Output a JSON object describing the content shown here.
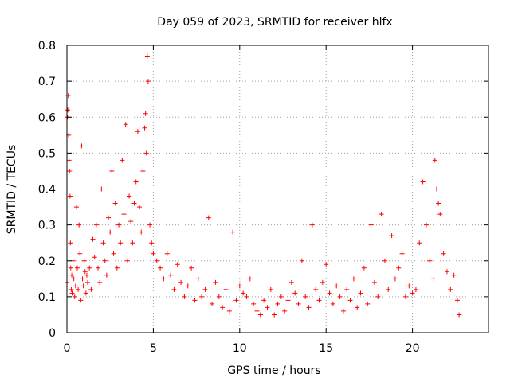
{
  "chart_data": {
    "type": "scatter",
    "title": "Day 059 of 2023, SRMTID for receiver hlfx",
    "xlabel": "GPS time / hours",
    "ylabel": "SRMTID / TECUs",
    "xlim": [
      0,
      24.4
    ],
    "ylim": [
      0,
      0.8
    ],
    "x_ticks": [
      0,
      5,
      10,
      15,
      20
    ],
    "y_ticks": [
      0,
      0.1,
      0.2,
      0.3,
      0.4,
      0.5,
      0.6,
      0.7,
      0.8
    ],
    "grid": true,
    "marker": "+",
    "color": "#ff0000",
    "series": [
      {
        "name": "SRMTID",
        "x": [
          0.0,
          0.03,
          0.05,
          0.08,
          0.1,
          0.12,
          0.15,
          0.18,
          0.2,
          0.22,
          0.25,
          0.28,
          0.3,
          0.35,
          0.4,
          0.45,
          0.5,
          0.55,
          0.6,
          0.65,
          0.7,
          0.75,
          0.8,
          0.85,
          0.9,
          0.95,
          1.0,
          1.05,
          1.1,
          1.15,
          1.2,
          1.3,
          1.4,
          1.5,
          1.6,
          1.7,
          1.8,
          1.9,
          2.0,
          2.1,
          2.2,
          2.3,
          2.4,
          2.5,
          2.6,
          2.7,
          2.8,
          2.9,
          3.0,
          3.1,
          3.2,
          3.3,
          3.4,
          3.5,
          3.6,
          3.7,
          3.8,
          3.9,
          4.0,
          4.1,
          4.2,
          4.3,
          4.4,
          4.5,
          4.55,
          4.6,
          4.65,
          4.7,
          4.8,
          4.9,
          5.0,
          5.2,
          5.4,
          5.6,
          5.8,
          6.0,
          6.2,
          6.4,
          6.6,
          6.8,
          7.0,
          7.2,
          7.4,
          7.6,
          7.8,
          8.0,
          8.2,
          8.4,
          8.6,
          8.8,
          9.0,
          9.2,
          9.4,
          9.6,
          9.8,
          10.0,
          10.2,
          10.4,
          10.6,
          10.8,
          11.0,
          11.2,
          11.4,
          11.6,
          11.8,
          12.0,
          12.2,
          12.4,
          12.6,
          12.8,
          13.0,
          13.2,
          13.4,
          13.6,
          13.8,
          14.0,
          14.2,
          14.4,
          14.6,
          14.8,
          15.0,
          15.2,
          15.4,
          15.6,
          15.8,
          16.0,
          16.2,
          16.4,
          16.6,
          16.8,
          17.0,
          17.2,
          17.4,
          17.6,
          17.8,
          18.0,
          18.2,
          18.4,
          18.6,
          18.8,
          19.0,
          19.2,
          19.4,
          19.6,
          19.8,
          20.0,
          20.2,
          20.4,
          20.6,
          20.8,
          21.0,
          21.2,
          21.3,
          21.4,
          21.5,
          21.6,
          21.8,
          22.0,
          22.2,
          22.4,
          22.6,
          22.7
        ],
        "y": [
          0.14,
          0.6,
          0.62,
          0.66,
          0.55,
          0.48,
          0.45,
          0.38,
          0.25,
          0.18,
          0.12,
          0.16,
          0.11,
          0.2,
          0.15,
          0.1,
          0.13,
          0.35,
          0.18,
          0.12,
          0.3,
          0.22,
          0.09,
          0.52,
          0.15,
          0.13,
          0.2,
          0.17,
          0.11,
          0.16,
          0.14,
          0.18,
          0.12,
          0.26,
          0.21,
          0.3,
          0.18,
          0.14,
          0.4,
          0.25,
          0.2,
          0.16,
          0.32,
          0.28,
          0.45,
          0.22,
          0.36,
          0.18,
          0.3,
          0.25,
          0.48,
          0.33,
          0.58,
          0.2,
          0.38,
          0.31,
          0.25,
          0.36,
          0.42,
          0.56,
          0.35,
          0.28,
          0.45,
          0.57,
          0.61,
          0.5,
          0.77,
          0.7,
          0.3,
          0.25,
          0.22,
          0.2,
          0.18,
          0.15,
          0.22,
          0.16,
          0.12,
          0.19,
          0.14,
          0.1,
          0.13,
          0.18,
          0.09,
          0.15,
          0.1,
          0.12,
          0.32,
          0.08,
          0.14,
          0.1,
          0.07,
          0.12,
          0.06,
          0.28,
          0.09,
          0.13,
          0.11,
          0.1,
          0.15,
          0.08,
          0.06,
          0.05,
          0.09,
          0.07,
          0.12,
          0.05,
          0.08,
          0.1,
          0.06,
          0.09,
          0.14,
          0.11,
          0.08,
          0.2,
          0.1,
          0.07,
          0.3,
          0.12,
          0.09,
          0.14,
          0.19,
          0.11,
          0.08,
          0.13,
          0.1,
          0.06,
          0.12,
          0.09,
          0.15,
          0.07,
          0.11,
          0.18,
          0.08,
          0.3,
          0.14,
          0.1,
          0.33,
          0.2,
          0.12,
          0.27,
          0.15,
          0.18,
          0.22,
          0.1,
          0.13,
          0.11,
          0.12,
          0.25,
          0.42,
          0.3,
          0.2,
          0.15,
          0.48,
          0.4,
          0.36,
          0.33,
          0.22,
          0.17,
          0.12,
          0.16,
          0.09,
          0.05
        ]
      }
    ]
  }
}
